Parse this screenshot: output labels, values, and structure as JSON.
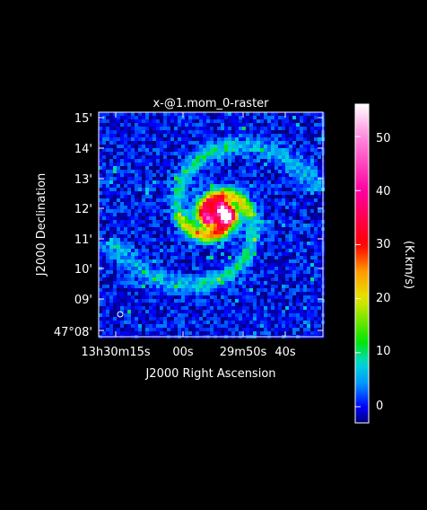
{
  "chart_data": {
    "type": "heatmap",
    "title": "x-@1.mom_0-raster",
    "xlabel": "J2000 Right Ascension",
    "ylabel": "J2000 Declination",
    "colorbar_label": "(K.km/s)",
    "x_ticks": [
      "13h30m15s",
      "00s",
      "29m50s",
      "40s"
    ],
    "y_ticks": [
      "15'",
      "14'",
      "13'",
      "12'",
      "11'",
      "10'",
      "09'",
      "47°08'"
    ],
    "colorbar_ticks": [
      "50",
      "40",
      "30",
      "20",
      "10",
      "0"
    ],
    "colorbar_values": [
      50,
      40,
      30,
      20,
      10,
      0
    ],
    "value_range": [
      -3,
      56
    ],
    "colormap": [
      "#ffffff",
      "#ff8cdc",
      "#ff00a0",
      "#ff0000",
      "#ff9a00",
      "#e6e600",
      "#00e600",
      "#00d8d8",
      "#0090ff",
      "#0000ff",
      "#00007a"
    ],
    "colormap_stops": [
      56,
      50,
      40,
      30,
      25,
      20,
      12,
      8,
      4,
      0,
      -3
    ],
    "background_level": 0,
    "galaxy_peak": 55,
    "description_features": "spiral galaxy molecular gas moment-0 map with noisy blue background"
  },
  "colors": {
    "background": "#000000",
    "axes": "#ffffff"
  }
}
